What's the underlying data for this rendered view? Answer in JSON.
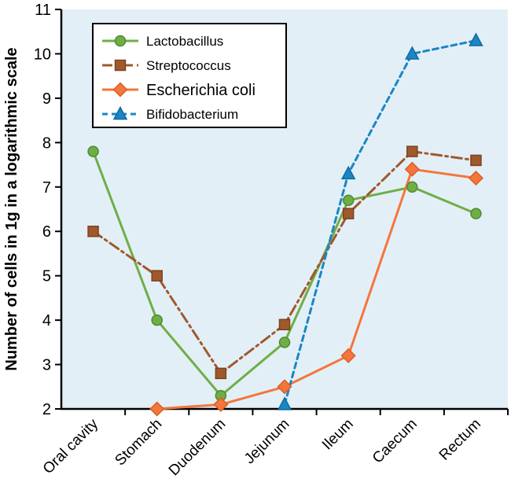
{
  "chart_data": {
    "type": "line",
    "title": "",
    "xlabel": "",
    "ylabel": "Number of cells in 1g in a logarithmic scale",
    "ylim": [
      2,
      11
    ],
    "yticks": [
      2,
      3,
      4,
      5,
      6,
      7,
      8,
      9,
      10,
      11
    ],
    "grid": false,
    "legend_position": "top-left",
    "plot_bg": "#e2eff7",
    "axis_color": "#000000",
    "categories": [
      "Oral cavity",
      "Stomach",
      "Duodenum",
      "Jejunum",
      "Ileum",
      "Caecum",
      "Rectum"
    ],
    "series": [
      {
        "name": "Lactobacillus",
        "color": "#6fae45",
        "stroke": "#4e8a33",
        "marker": "circle",
        "line_style": "solid",
        "legend_font": 17,
        "values": [
          7.8,
          4.0,
          2.3,
          3.5,
          6.7,
          7.0,
          6.4
        ]
      },
      {
        "name": "Streptococcus",
        "color": "#a0592c",
        "stroke": "#7d421f",
        "marker": "square",
        "line_style": "dash-dot",
        "legend_font": 17,
        "values": [
          6.0,
          5.0,
          2.8,
          3.9,
          6.4,
          7.8,
          7.6
        ]
      },
      {
        "name": "Escherichia coli",
        "color": "#f4763b",
        "stroke": "#d85f27",
        "marker": "diamond",
        "line_style": "solid",
        "legend_font": 20,
        "values": [
          null,
          2.0,
          2.1,
          2.5,
          3.2,
          7.4,
          7.2
        ]
      },
      {
        "name": "Bifidobacterium",
        "color": "#1b86c3",
        "stroke": "#1169a0",
        "marker": "triangle",
        "line_style": "dashed",
        "legend_font": 17,
        "values": [
          null,
          null,
          null,
          2.1,
          7.3,
          10.0,
          10.3
        ]
      }
    ]
  }
}
